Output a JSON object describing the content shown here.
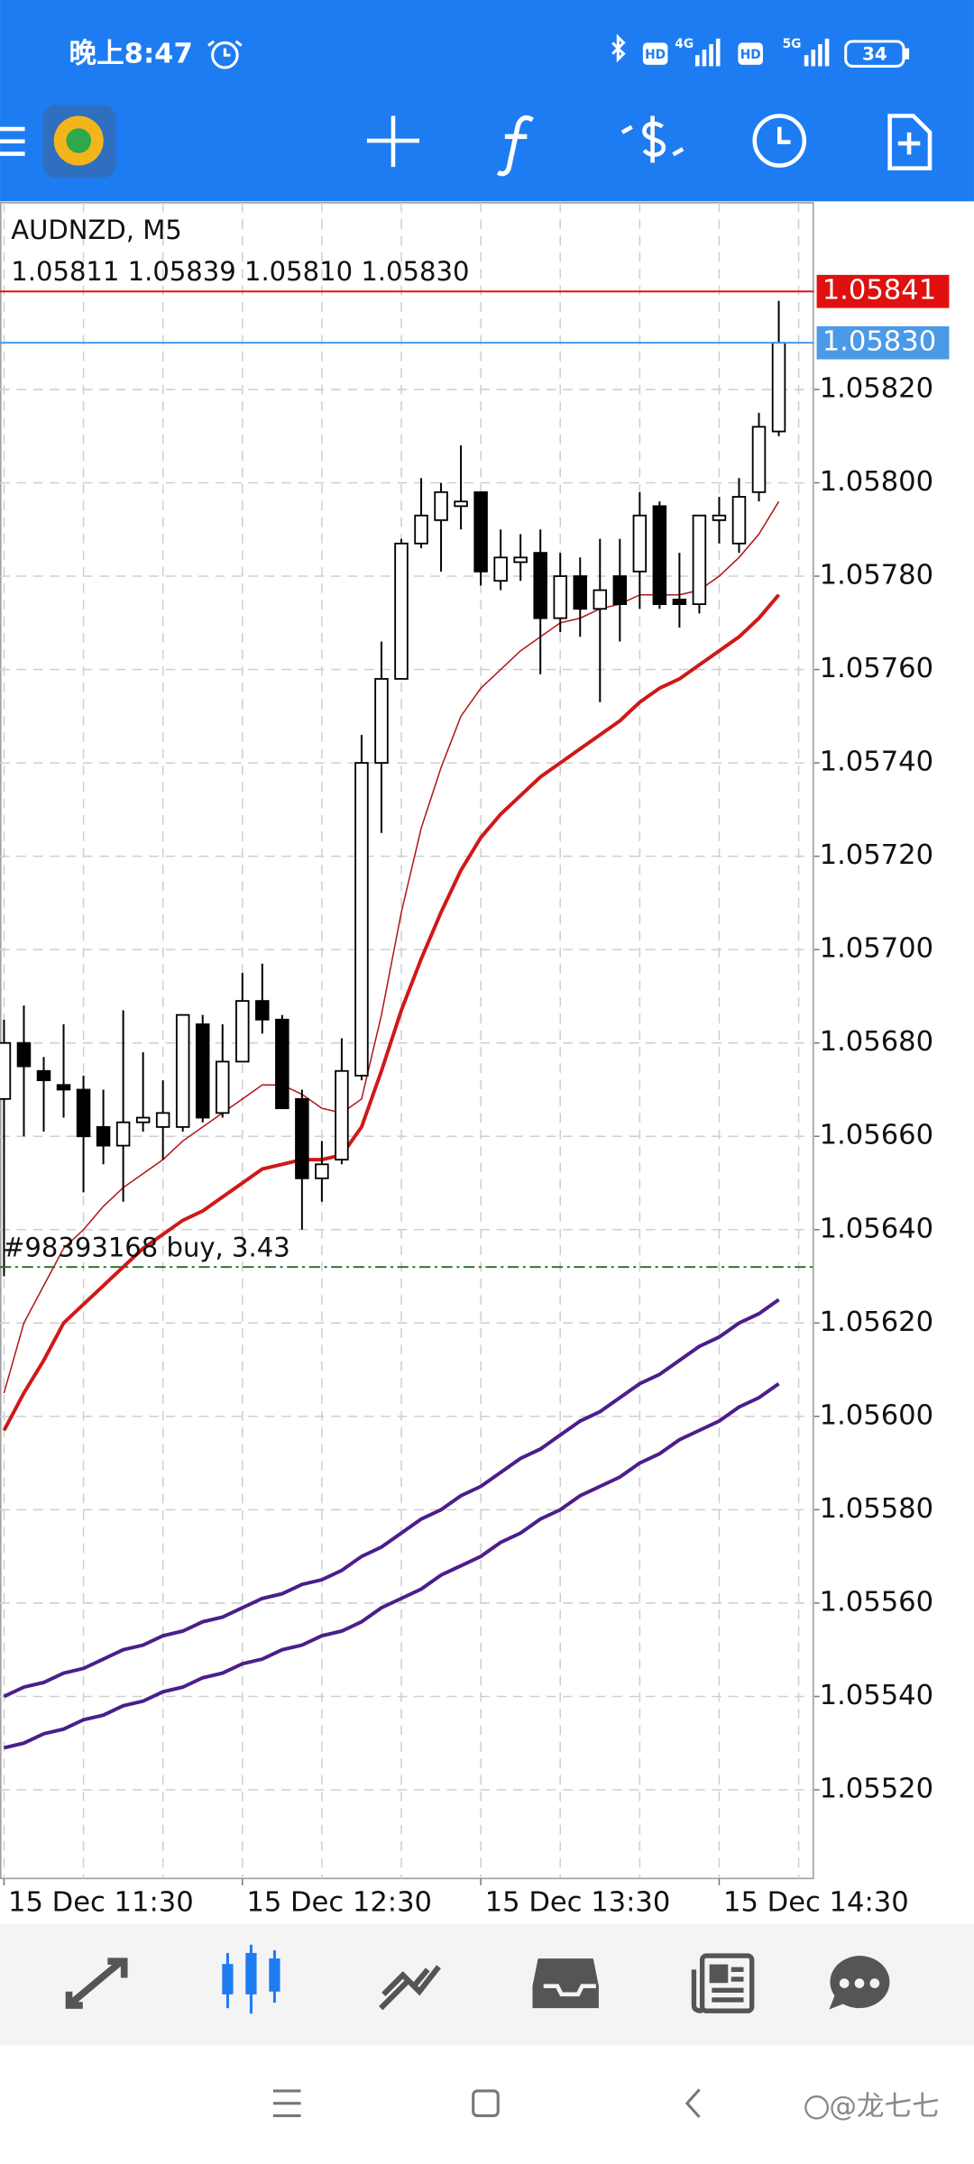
{
  "status_bar": {
    "time": "晚上8:47",
    "network_labels": [
      "HD",
      "4G",
      "HD",
      "5G"
    ],
    "battery": "34"
  },
  "chart_data": {
    "type": "candlestick",
    "title": "AUDNZD, M5",
    "subtitle": "1.05811 1.05839 1.05810 1.05830",
    "x": [
      0,
      1,
      2,
      3,
      4,
      5,
      6,
      7,
      8,
      9,
      10,
      11,
      12,
      13,
      14,
      15,
      16,
      17,
      18,
      19,
      20,
      21,
      22,
      23,
      24,
      25,
      26,
      27,
      28,
      29,
      30,
      31,
      32,
      33,
      34,
      35,
      36,
      37,
      38,
      39
    ],
    "open": [
      1.05668,
      1.0568,
      1.05674,
      1.05671,
      1.0567,
      1.05662,
      1.05658,
      1.05663,
      1.05662,
      1.05662,
      1.05684,
      1.05665,
      1.05676,
      1.05689,
      1.05685,
      1.05668,
      1.05651,
      1.05655,
      1.05673,
      1.0574,
      1.05758,
      1.05787,
      1.05792,
      1.05795,
      1.05798,
      1.05779,
      1.05783,
      1.05785,
      1.05771,
      1.0578,
      1.05773,
      1.0578,
      1.05781,
      1.05795,
      1.05775,
      1.05774,
      1.05792,
      1.05787,
      1.05798,
      1.05811
    ],
    "high": [
      1.05685,
      1.05688,
      1.05677,
      1.05684,
      1.05673,
      1.0567,
      1.05687,
      1.05678,
      1.05672,
      1.05686,
      1.05686,
      1.05684,
      1.05695,
      1.05697,
      1.05686,
      1.0567,
      1.05659,
      1.05681,
      1.05746,
      1.05766,
      1.05788,
      1.05801,
      1.058,
      1.05808,
      1.05798,
      1.0579,
      1.05789,
      1.0579,
      1.05785,
      1.05784,
      1.05788,
      1.05788,
      1.05798,
      1.05796,
      1.05785,
      1.05793,
      1.05797,
      1.05801,
      1.05815,
      1.05839
    ],
    "low": [
      1.0563,
      1.0566,
      1.05661,
      1.05664,
      1.05648,
      1.05654,
      1.05646,
      1.05661,
      1.05655,
      1.05661,
      1.05663,
      1.05664,
      1.05676,
      1.05682,
      1.05666,
      1.0564,
      1.05646,
      1.05654,
      1.05672,
      1.05725,
      1.05758,
      1.05786,
      1.05781,
      1.0579,
      1.05778,
      1.05777,
      1.05779,
      1.05759,
      1.05768,
      1.05767,
      1.05753,
      1.05766,
      1.05773,
      1.05773,
      1.05769,
      1.05772,
      1.05787,
      1.05785,
      1.05796,
      1.0581
    ],
    "close": [
      1.0568,
      1.05675,
      1.05672,
      1.0567,
      1.0566,
      1.05658,
      1.05663,
      1.05664,
      1.05665,
      1.05686,
      1.05664,
      1.05676,
      1.05689,
      1.05685,
      1.05666,
      1.05651,
      1.05654,
      1.05674,
      1.0574,
      1.05758,
      1.05787,
      1.05793,
      1.05798,
      1.05796,
      1.05781,
      1.05784,
      1.05784,
      1.05771,
      1.0578,
      1.05773,
      1.05777,
      1.05774,
      1.05793,
      1.05774,
      1.05774,
      1.05793,
      1.05793,
      1.05797,
      1.05812,
      1.0583
    ],
    "up_color": "#ffffff",
    "down_color": "#000000",
    "lines": [
      {
        "color": "#b01818",
        "width": 1,
        "values": [
          1.05605,
          1.0562,
          1.05628,
          1.05636,
          1.0564,
          1.05645,
          1.05649,
          1.05652,
          1.05655,
          1.05659,
          1.05662,
          1.05665,
          1.05668,
          1.05671,
          1.05671,
          1.05669,
          1.05666,
          1.05665,
          1.05668,
          1.05686,
          1.05708,
          1.05726,
          1.05739,
          1.0575,
          1.05756,
          1.0576,
          1.05764,
          1.05767,
          1.0577,
          1.05771,
          1.05773,
          1.05774,
          1.05776,
          1.05776,
          1.05776,
          1.05777,
          1.0578,
          1.05784,
          1.05789,
          1.05796
        ]
      },
      {
        "color": "#d01818",
        "width": 2.6,
        "values": [
          1.05597,
          1.05605,
          1.05612,
          1.0562,
          1.05624,
          1.05628,
          1.05632,
          1.05636,
          1.05639,
          1.05642,
          1.05644,
          1.05647,
          1.0565,
          1.05653,
          1.05654,
          1.05655,
          1.05655,
          1.05656,
          1.05662,
          1.05674,
          1.05687,
          1.05698,
          1.05708,
          1.05717,
          1.05724,
          1.05729,
          1.05733,
          1.05737,
          1.0574,
          1.05743,
          1.05746,
          1.05749,
          1.05753,
          1.05756,
          1.05758,
          1.05761,
          1.05764,
          1.05767,
          1.05771,
          1.05776
        ]
      },
      {
        "color": "#4b1e8c",
        "width": 2.6,
        "values": [
          1.0554,
          1.05542,
          1.05543,
          1.05545,
          1.05546,
          1.05548,
          1.0555,
          1.05551,
          1.05553,
          1.05554,
          1.05556,
          1.05557,
          1.05559,
          1.05561,
          1.05562,
          1.05564,
          1.05565,
          1.05567,
          1.0557,
          1.05572,
          1.05575,
          1.05578,
          1.0558,
          1.05583,
          1.05585,
          1.05588,
          1.05591,
          1.05593,
          1.05596,
          1.05599,
          1.05601,
          1.05604,
          1.05607,
          1.05609,
          1.05612,
          1.05615,
          1.05617,
          1.0562,
          1.05622,
          1.05625
        ]
      },
      {
        "color": "#4b1e8c",
        "width": 2.6,
        "values": [
          1.05529,
          1.0553,
          1.05532,
          1.05533,
          1.05535,
          1.05536,
          1.05538,
          1.05539,
          1.05541,
          1.05542,
          1.05544,
          1.05545,
          1.05547,
          1.05548,
          1.0555,
          1.05551,
          1.05553,
          1.05554,
          1.05556,
          1.05559,
          1.05561,
          1.05563,
          1.05566,
          1.05568,
          1.0557,
          1.05573,
          1.05575,
          1.05578,
          1.0558,
          1.05583,
          1.05585,
          1.05587,
          1.0559,
          1.05592,
          1.05595,
          1.05597,
          1.05599,
          1.05602,
          1.05604,
          1.05607
        ]
      }
    ],
    "price_lines": [
      {
        "value": 1.05841,
        "color": "#e01010"
      },
      {
        "value": 1.0583,
        "label": "1.05830",
        "color": "#4a9ae8"
      }
    ],
    "order_line": {
      "value": 1.05632,
      "label": "#98393168 buy, 3.43",
      "color": "#1f6e2a"
    },
    "xlim": [
      -0.2,
      40.77
    ],
    "ylim": [
      1.05501,
      1.0586
    ],
    "xticks": [
      {
        "value": 0,
        "label": "15 Dec 11:30"
      },
      {
        "value": 12,
        "label": "15 Dec 12:30"
      },
      {
        "value": 24,
        "label": "15 Dec 13:30"
      },
      {
        "value": 36,
        "label": "15 Dec 14:30"
      }
    ],
    "yticks": [
      {
        "value": 1.0582,
        "label": "1.05820"
      },
      {
        "value": 1.058,
        "label": "1.05800"
      },
      {
        "value": 1.0578,
        "label": "1.05780"
      },
      {
        "value": 1.0576,
        "label": "1.05760"
      },
      {
        "value": 1.0574,
        "label": "1.05740"
      },
      {
        "value": 1.0572,
        "label": "1.05720"
      },
      {
        "value": 1.057,
        "label": "1.05700"
      },
      {
        "value": 1.0568,
        "label": "1.05680"
      },
      {
        "value": 1.0566,
        "label": "1.05660"
      },
      {
        "value": 1.0564,
        "label": "1.05640"
      },
      {
        "value": 1.0562,
        "label": "1.05620"
      },
      {
        "value": 1.056,
        "label": "1.05600"
      },
      {
        "value": 1.0558,
        "label": "1.05580"
      },
      {
        "value": 1.0556,
        "label": "1.05560"
      },
      {
        "value": 1.0554,
        "label": "1.05540"
      },
      {
        "value": 1.0552,
        "label": "1.05520"
      }
    ],
    "grid": true
  },
  "watermark": "@龙七七"
}
